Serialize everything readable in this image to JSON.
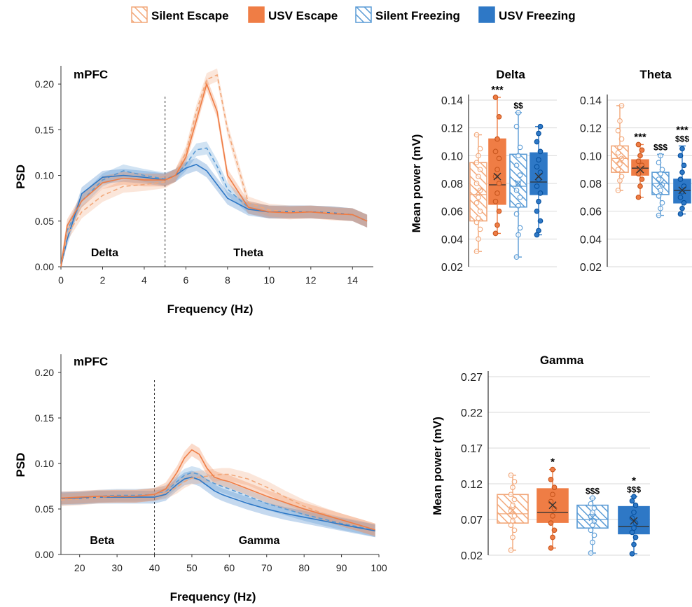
{
  "colors": {
    "silent_escape": "#f2a779",
    "usv_escape": "#ef7d45",
    "silent_freezing": "#5a9bd5",
    "usv_freezing": "#2e78c6"
  },
  "legend": [
    {
      "label": "Silent Escape",
      "color": "#f2a779",
      "hatched": true
    },
    {
      "label": "USV Escape",
      "color": "#ef7d45",
      "hatched": false
    },
    {
      "label": "Silent Freezing",
      "color": "#5a9bd5",
      "hatched": true
    },
    {
      "label": "USV Freezing",
      "color": "#2e78c6",
      "hatched": false
    }
  ],
  "chart_data": [
    {
      "type": "line",
      "title": "mPFC",
      "xlabel": "Frequency (Hz)",
      "ylabel": "PSD",
      "xlim": [
        0,
        15
      ],
      "ylim": [
        0,
        0.22
      ],
      "xticks": [
        0,
        2,
        4,
        6,
        8,
        10,
        12,
        14
      ],
      "yticks": [
        "0.00",
        "0.05",
        "0.10",
        "0.15",
        "0.20"
      ],
      "divider_x": 5,
      "band_labels": [
        {
          "text": "Delta",
          "x": 2.1
        },
        {
          "text": "Theta",
          "x": 9.0
        }
      ],
      "series": [
        {
          "group": "usv_escape",
          "dashed": false,
          "x": [
            0,
            0.3,
            1,
            2,
            3,
            4,
            5,
            5.5,
            6,
            6.5,
            7,
            7.5,
            8,
            9,
            10,
            11,
            12,
            13,
            14,
            14.7
          ],
          "y": [
            0,
            0.045,
            0.072,
            0.092,
            0.097,
            0.095,
            0.095,
            0.1,
            0.12,
            0.16,
            0.2,
            0.17,
            0.1,
            0.065,
            0.06,
            0.059,
            0.06,
            0.058,
            0.057,
            0.05
          ]
        },
        {
          "group": "silent_escape",
          "dashed": true,
          "x": [
            0,
            0.3,
            1,
            2,
            3,
            4,
            5,
            5.5,
            6,
            6.5,
            7,
            7.5,
            8,
            9,
            10,
            11,
            12,
            13,
            14,
            14.7
          ],
          "y": [
            0,
            0.035,
            0.06,
            0.078,
            0.088,
            0.09,
            0.093,
            0.1,
            0.125,
            0.17,
            0.205,
            0.21,
            0.15,
            0.07,
            0.062,
            0.06,
            0.06,
            0.059,
            0.057,
            0.05
          ]
        },
        {
          "group": "silent_freezing",
          "dashed": true,
          "x": [
            0,
            0.3,
            1,
            2,
            3,
            4,
            5,
            5.5,
            6,
            6.5,
            7,
            7.5,
            8,
            9,
            10,
            11,
            12,
            13,
            14,
            14.7
          ],
          "y": [
            0,
            0.04,
            0.072,
            0.095,
            0.105,
            0.1,
            0.096,
            0.1,
            0.112,
            0.128,
            0.13,
            0.11,
            0.085,
            0.065,
            0.06,
            0.06,
            0.06,
            0.059,
            0.057,
            0.05
          ]
        },
        {
          "group": "usv_freezing",
          "dashed": false,
          "x": [
            0,
            0.3,
            1,
            2,
            3,
            4,
            5,
            5.5,
            6,
            6.5,
            7,
            7.5,
            8,
            9,
            10,
            11,
            12,
            13,
            14,
            14.7
          ],
          "y": [
            0,
            0.03,
            0.08,
            0.098,
            0.1,
            0.098,
            0.095,
            0.1,
            0.108,
            0.112,
            0.105,
            0.09,
            0.075,
            0.063,
            0.06,
            0.06,
            0.06,
            0.059,
            0.057,
            0.05
          ]
        }
      ]
    },
    {
      "type": "line",
      "title": "mPFC",
      "xlabel": "Frequency (Hz)",
      "ylabel": "PSD",
      "xlim": [
        15,
        100
      ],
      "ylim": [
        0,
        0.22
      ],
      "xticks": [
        20,
        30,
        40,
        50,
        60,
        70,
        80,
        90,
        100
      ],
      "yticks": [
        "0.00",
        "0.05",
        "0.10",
        "0.15",
        "0.20"
      ],
      "divider_x": 40,
      "band_labels": [
        {
          "text": "Beta",
          "x": 26
        },
        {
          "text": "Gamma",
          "x": 68
        }
      ],
      "series": [
        {
          "group": "usv_escape",
          "dashed": false,
          "x": [
            15,
            20,
            25,
            30,
            35,
            40,
            43,
            46,
            48,
            50,
            52,
            54,
            56,
            58,
            60,
            65,
            70,
            75,
            80,
            85,
            90,
            95,
            99
          ],
          "y": [
            0.062,
            0.063,
            0.064,
            0.064,
            0.064,
            0.066,
            0.072,
            0.09,
            0.106,
            0.115,
            0.11,
            0.095,
            0.085,
            0.082,
            0.08,
            0.072,
            0.064,
            0.057,
            0.05,
            0.044,
            0.038,
            0.032,
            0.027
          ]
        },
        {
          "group": "silent_escape",
          "dashed": true,
          "x": [
            15,
            20,
            25,
            30,
            35,
            40,
            43,
            46,
            48,
            50,
            52,
            54,
            56,
            58,
            60,
            65,
            70,
            75,
            80,
            85,
            90,
            95,
            99
          ],
          "y": [
            0.06,
            0.061,
            0.063,
            0.064,
            0.064,
            0.066,
            0.068,
            0.074,
            0.08,
            0.084,
            0.085,
            0.086,
            0.087,
            0.088,
            0.088,
            0.083,
            0.074,
            0.063,
            0.053,
            0.045,
            0.038,
            0.032,
            0.027
          ]
        },
        {
          "group": "silent_freezing",
          "dashed": true,
          "x": [
            15,
            20,
            25,
            30,
            35,
            40,
            43,
            46,
            48,
            50,
            52,
            54,
            56,
            58,
            60,
            65,
            70,
            75,
            80,
            85,
            90,
            95,
            99
          ],
          "y": [
            0.061,
            0.062,
            0.064,
            0.065,
            0.065,
            0.066,
            0.069,
            0.08,
            0.087,
            0.09,
            0.088,
            0.082,
            0.078,
            0.075,
            0.072,
            0.064,
            0.056,
            0.05,
            0.044,
            0.039,
            0.034,
            0.03,
            0.026
          ]
        },
        {
          "group": "usv_freezing",
          "dashed": false,
          "x": [
            15,
            20,
            25,
            30,
            35,
            40,
            43,
            46,
            48,
            50,
            52,
            54,
            56,
            58,
            60,
            65,
            70,
            75,
            80,
            85,
            90,
            95,
            99
          ],
          "y": [
            0.062,
            0.062,
            0.063,
            0.063,
            0.063,
            0.063,
            0.066,
            0.077,
            0.083,
            0.085,
            0.082,
            0.076,
            0.07,
            0.066,
            0.063,
            0.056,
            0.05,
            0.045,
            0.041,
            0.037,
            0.033,
            0.029,
            0.026
          ]
        }
      ]
    },
    {
      "type": "box",
      "title": "Delta",
      "ylabel": "Mean power (mV)",
      "ylim": [
        0.02,
        0.14
      ],
      "yticks": [
        "0.02",
        "0.04",
        "0.06",
        "0.08",
        "0.10",
        "0.12",
        "0.14"
      ],
      "groups": [
        {
          "group": "silent_escape",
          "min": 0.031,
          "q1": 0.053,
          "median": 0.072,
          "mean": 0.074,
          "q3": 0.095,
          "max": 0.115,
          "points": [
            0.031,
            0.04,
            0.047,
            0.052,
            0.055,
            0.06,
            0.066,
            0.07,
            0.075,
            0.08,
            0.085,
            0.09,
            0.095,
            0.1,
            0.105,
            0.115
          ],
          "sig": ""
        },
        {
          "group": "usv_escape",
          "min": 0.044,
          "q1": 0.065,
          "median": 0.079,
          "mean": 0.085,
          "q3": 0.112,
          "max": 0.142,
          "points": [
            0.044,
            0.05,
            0.06,
            0.067,
            0.073,
            0.08,
            0.085,
            0.09,
            0.098,
            0.103,
            0.112,
            0.128,
            0.142
          ],
          "sig": "***"
        },
        {
          "group": "silent_freezing",
          "min": 0.027,
          "q1": 0.063,
          "median": 0.078,
          "mean": 0.08,
          "q3": 0.101,
          "max": 0.131,
          "points": [
            0.027,
            0.043,
            0.048,
            0.058,
            0.064,
            0.07,
            0.075,
            0.08,
            0.086,
            0.093,
            0.1,
            0.106,
            0.121,
            0.131
          ],
          "sig": "$$"
        },
        {
          "group": "usv_freezing",
          "min": 0.043,
          "q1": 0.072,
          "median": 0.081,
          "mean": 0.085,
          "q3": 0.102,
          "max": 0.121,
          "points": [
            0.043,
            0.046,
            0.053,
            0.06,
            0.067,
            0.073,
            0.078,
            0.083,
            0.088,
            0.092,
            0.097,
            0.103,
            0.11,
            0.116,
            0.121
          ],
          "sig": ""
        }
      ]
    },
    {
      "type": "box",
      "title": "Theta",
      "ylim": [
        0.02,
        0.14
      ],
      "yticks": [
        "0.02",
        "0.04",
        "0.06",
        "0.08",
        "0.10",
        "0.12",
        "0.14"
      ],
      "groups": [
        {
          "group": "silent_escape",
          "min": 0.075,
          "q1": 0.088,
          "median": 0.098,
          "mean": 0.097,
          "q3": 0.107,
          "max": 0.136,
          "points": [
            0.075,
            0.082,
            0.085,
            0.09,
            0.094,
            0.098,
            0.102,
            0.106,
            0.112,
            0.118,
            0.125,
            0.136
          ],
          "sig": ""
        },
        {
          "group": "usv_escape",
          "min": 0.07,
          "q1": 0.086,
          "median": 0.091,
          "mean": 0.09,
          "q3": 0.097,
          "max": 0.108,
          "points": [
            0.07,
            0.078,
            0.083,
            0.087,
            0.09,
            0.093,
            0.096,
            0.1,
            0.104,
            0.108
          ],
          "sig": "***"
        },
        {
          "group": "silent_freezing",
          "min": 0.057,
          "q1": 0.072,
          "median": 0.08,
          "mean": 0.08,
          "q3": 0.088,
          "max": 0.101,
          "points": [
            0.057,
            0.062,
            0.066,
            0.071,
            0.075,
            0.079,
            0.083,
            0.087,
            0.09,
            0.095,
            0.1
          ],
          "sig": "$$$"
        },
        {
          "group": "usv_freezing",
          "min": 0.058,
          "q1": 0.066,
          "median": 0.075,
          "mean": 0.075,
          "q3": 0.083,
          "max": 0.107,
          "points": [
            0.058,
            0.062,
            0.066,
            0.07,
            0.074,
            0.078,
            0.083,
            0.088,
            0.093,
            0.1,
            0.105
          ],
          "sig": "***",
          "sig2": "$$$"
        }
      ]
    },
    {
      "type": "box",
      "title": "Gamma",
      "ylabel": "Mean power (mV)",
      "ylim": [
        0.02,
        0.27
      ],
      "yticks": [
        "0.02",
        "0.07",
        "0.12",
        "0.17",
        "0.22",
        "0.27"
      ],
      "groups": [
        {
          "group": "silent_escape",
          "min": 0.027,
          "q1": 0.065,
          "median": 0.078,
          "mean": 0.083,
          "q3": 0.105,
          "max": 0.132,
          "points": [
            0.027,
            0.045,
            0.055,
            0.062,
            0.068,
            0.075,
            0.082,
            0.09,
            0.098,
            0.105,
            0.115,
            0.123,
            0.132
          ],
          "sig": ""
        },
        {
          "group": "usv_escape",
          "min": 0.03,
          "q1": 0.066,
          "median": 0.08,
          "mean": 0.09,
          "q3": 0.113,
          "max": 0.14,
          "points": [
            0.03,
            0.045,
            0.055,
            0.065,
            0.075,
            0.085,
            0.095,
            0.105,
            0.115,
            0.126,
            0.14
          ],
          "sig": "*"
        },
        {
          "group": "silent_freezing",
          "min": 0.023,
          "q1": 0.058,
          "median": 0.07,
          "mean": 0.073,
          "q3": 0.09,
          "max": 0.1,
          "points": [
            0.023,
            0.038,
            0.048,
            0.055,
            0.062,
            0.068,
            0.074,
            0.08,
            0.086,
            0.092,
            0.1
          ],
          "sig": "$$$"
        },
        {
          "group": "usv_freezing",
          "min": 0.022,
          "q1": 0.05,
          "median": 0.06,
          "mean": 0.068,
          "q3": 0.088,
          "max": 0.102,
          "points": [
            0.022,
            0.035,
            0.045,
            0.052,
            0.058,
            0.065,
            0.072,
            0.08,
            0.09,
            0.096,
            0.102
          ],
          "sig": "*",
          "sig2": "$$$"
        }
      ]
    }
  ]
}
